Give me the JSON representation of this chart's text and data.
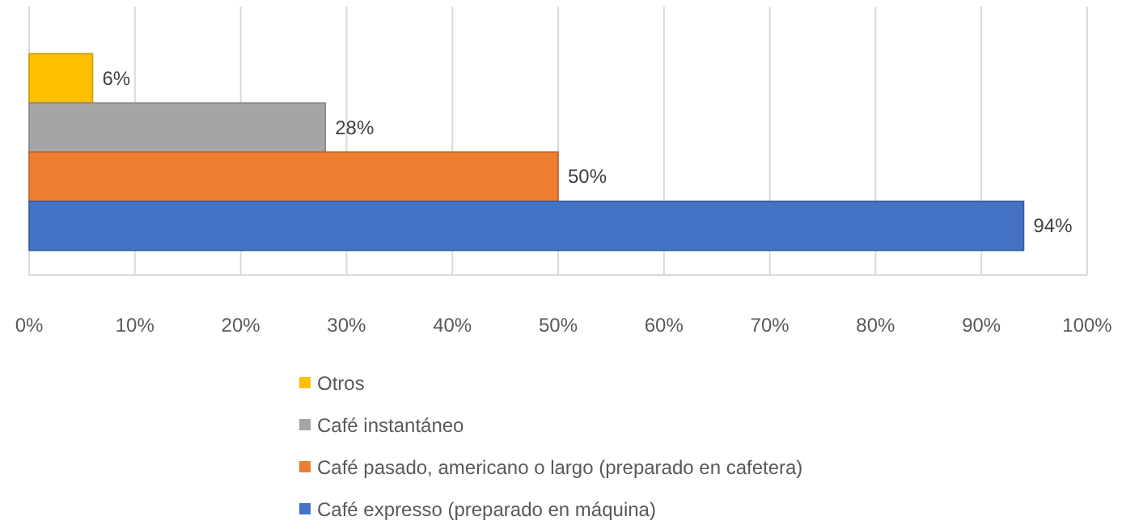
{
  "chart_data": {
    "type": "bar",
    "orientation": "horizontal",
    "categories": [
      null
    ],
    "series": [
      {
        "name": "Otros",
        "color": "#ffc000",
        "values": [
          6
        ],
        "value_labels": [
          "6%"
        ]
      },
      {
        "name": "Café instantáneo",
        "color": "#a5a5a5",
        "values": [
          28
        ],
        "value_labels": [
          "28%"
        ]
      },
      {
        "name": "Café pasado, americano o largo (preparado en cafetera)",
        "color": "#ed7d31",
        "values": [
          50
        ],
        "value_labels": [
          "50%"
        ]
      },
      {
        "name": "Café expresso (preparado en máquina)",
        "color": "#4472c4",
        "values": [
          94
        ],
        "value_labels": [
          "94%"
        ]
      }
    ],
    "xlim": [
      0,
      100
    ],
    "xticks": [
      {
        "value": 0,
        "label": "0%"
      },
      {
        "value": 10,
        "label": "10%"
      },
      {
        "value": 20,
        "label": "20%"
      },
      {
        "value": 30,
        "label": "30%"
      },
      {
        "value": 40,
        "label": "40%"
      },
      {
        "value": 50,
        "label": "50%"
      },
      {
        "value": 60,
        "label": "60%"
      },
      {
        "value": 70,
        "label": "70%"
      },
      {
        "value": 80,
        "label": "80%"
      },
      {
        "value": 90,
        "label": "90%"
      },
      {
        "value": 100,
        "label": "100%"
      }
    ],
    "grid": "x",
    "legend": "bottom"
  }
}
